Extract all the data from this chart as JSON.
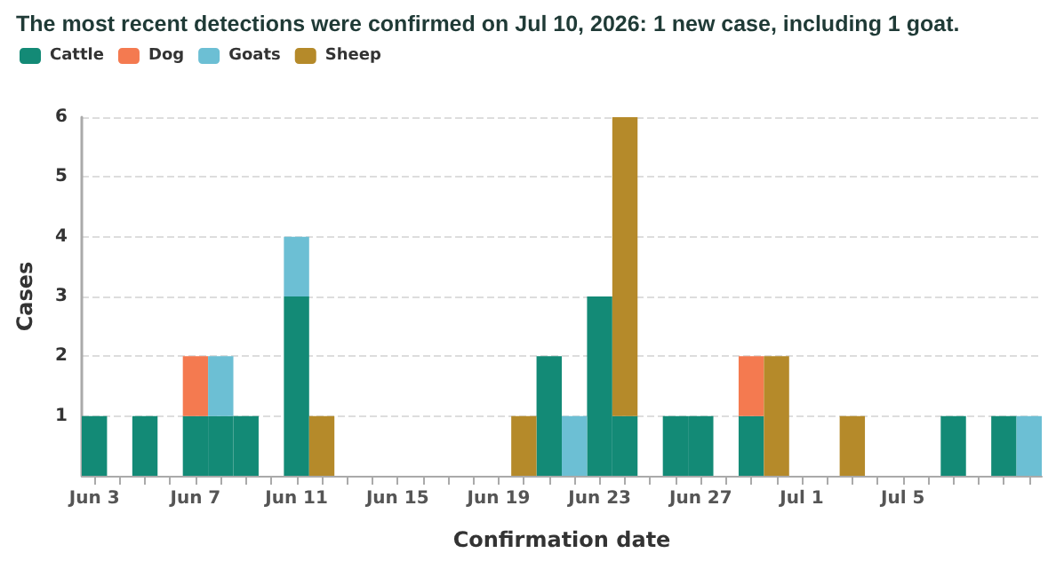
{
  "chart_data": {
    "type": "bar",
    "title": "The most recent detections were confirmed on Jul 10, 2026: 1 new case, including 1 goat.",
    "xlabel": "Confirmation date",
    "ylabel": "Cases",
    "categories": [
      "Jun 3",
      null,
      null,
      null,
      "Jun 7",
      null,
      null,
      null,
      "Jun 11",
      null,
      null,
      null,
      "Jun 15",
      null,
      null,
      null,
      "Jun 19",
      null,
      null,
      null,
      "Jun 23",
      null,
      null,
      null,
      "Jun 27",
      null,
      null,
      null,
      "Jul 1",
      null,
      null,
      null,
      "Jul 5",
      null,
      null,
      null,
      null,
      null
    ],
    "series": [
      {
        "name": "Cattle",
        "color": "#138a76",
        "values": [
          1,
          0,
          1,
          0,
          1,
          1,
          1,
          0,
          3,
          0,
          0,
          0,
          0,
          0,
          0,
          0,
          0,
          0,
          2,
          0,
          3,
          1,
          0,
          1,
          1,
          0,
          1,
          0,
          0,
          0,
          0,
          0,
          0,
          0,
          1,
          0,
          1,
          0
        ]
      },
      {
        "name": "Dog",
        "color": "#f47a50",
        "values": [
          0,
          0,
          0,
          0,
          1,
          0,
          0,
          0,
          0,
          0,
          0,
          0,
          0,
          0,
          0,
          0,
          0,
          0,
          0,
          0,
          0,
          0,
          0,
          0,
          0,
          0,
          1,
          0,
          0,
          0,
          0,
          0,
          0,
          0,
          0,
          0,
          0,
          0
        ]
      },
      {
        "name": "Goats",
        "color": "#6cbfd4",
        "values": [
          0,
          0,
          0,
          0,
          0,
          1,
          0,
          0,
          1,
          0,
          0,
          0,
          0,
          0,
          0,
          0,
          0,
          0,
          0,
          1,
          0,
          0,
          0,
          0,
          0,
          0,
          0,
          0,
          0,
          0,
          0,
          0,
          0,
          0,
          0,
          0,
          0,
          1
        ]
      },
      {
        "name": "Sheep",
        "color": "#b58a2a",
        "values": [
          0,
          0,
          0,
          0,
          0,
          0,
          0,
          0,
          0,
          1,
          0,
          0,
          0,
          0,
          0,
          0,
          0,
          1,
          0,
          0,
          0,
          5,
          0,
          0,
          0,
          0,
          0,
          2,
          0,
          0,
          1,
          0,
          0,
          0,
          0,
          0,
          0,
          0
        ]
      }
    ],
    "stacked": true,
    "ylim": [
      0,
      6
    ],
    "yticks": [
      1,
      2,
      3,
      4,
      5,
      6
    ],
    "grid": "y",
    "legend": "top left"
  }
}
